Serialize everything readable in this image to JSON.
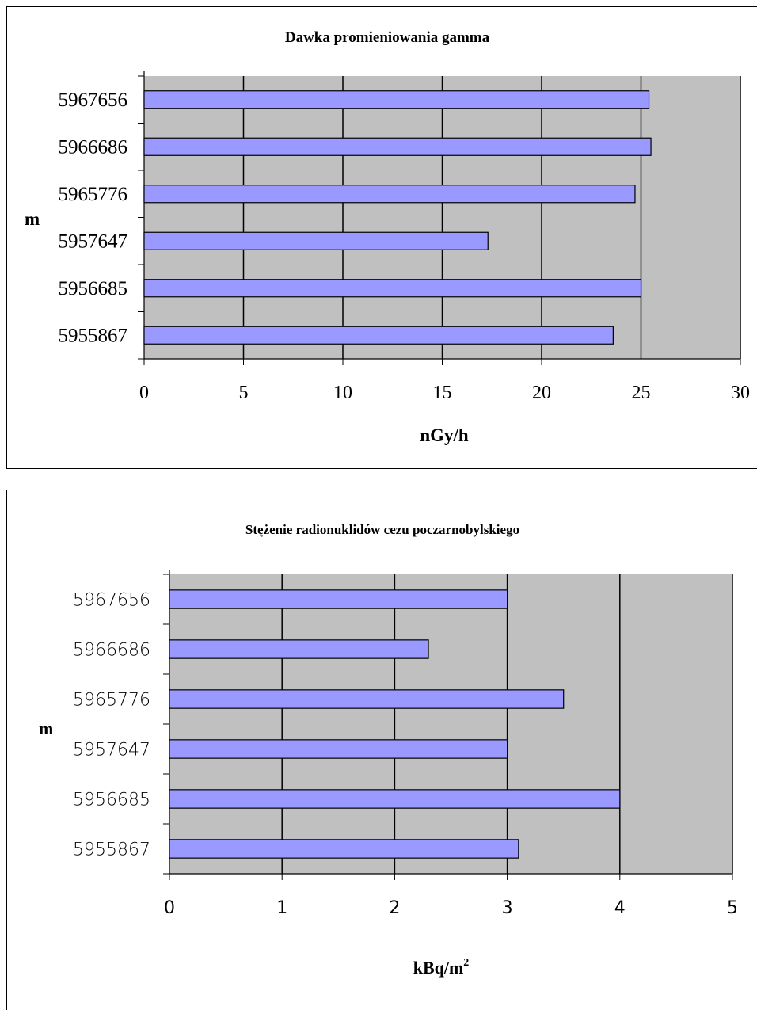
{
  "chart_data": [
    {
      "type": "bar",
      "orientation": "horizontal",
      "title": "Dawka promieniowania gamma",
      "xlabel": "nGy/h",
      "ylabel": "m",
      "categories": [
        "5967656",
        "5966686",
        "5965776",
        "5957647",
        "5956685",
        "5955867"
      ],
      "values": [
        25.4,
        25.5,
        24.7,
        17.3,
        25.0,
        23.6
      ],
      "xlim": [
        0,
        30
      ],
      "xticks": [
        "0",
        "5",
        "10",
        "15",
        "20",
        "25",
        "30"
      ],
      "grid": true,
      "plot_bg": "#c0c0c0",
      "bar_color": "#9999ff"
    },
    {
      "type": "bar",
      "orientation": "horizontal",
      "title": "Stężenie radionuklidów cezu poczarnobylskiego",
      "xlabel": "kBq/m",
      "xlabel_sup": "2",
      "ylabel": "m",
      "categories": [
        "5967656",
        "5966686",
        "5965776",
        "5957647",
        "5956685",
        "5955867"
      ],
      "values": [
        3.0,
        2.3,
        3.5,
        3.0,
        4.0,
        3.1
      ],
      "xlim": [
        0,
        5
      ],
      "xticks": [
        "0",
        "1",
        "2",
        "3",
        "4",
        "5"
      ],
      "grid": true,
      "plot_bg": "#c0c0c0",
      "bar_color": "#9999ff"
    }
  ]
}
